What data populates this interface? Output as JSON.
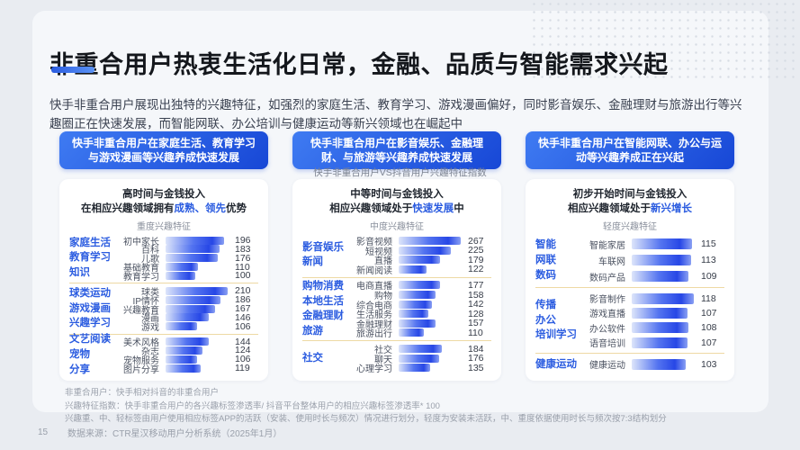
{
  "page_number": "15",
  "title": "非重合用户热衷生活化日常，金融、品质与智能需求兴起",
  "subtitle": "快手非重合用户展现出独特的兴趣特征，如强烈的家庭生活、教育学习、游戏漫画偏好，同时影音娱乐、金融理财与旅游出行等兴趣圈正在快速发展，而智能网联、办公培训与健康运动等新兴领域也在崛起中",
  "center_caption": "快手非重合用户VS抖音用户兴趣特征指数",
  "colors": {
    "accent_blue": "#2b5ce0",
    "pill_gradient_start": "#3f7bf2",
    "pill_gradient_end": "#1747d6",
    "bar_blue_deep": "#2747e6",
    "divider_tan": "#eed9a4",
    "title_text": "#14171c",
    "slide_background": "#f5f7fa"
  },
  "panels": [
    {
      "pill": "快手非重合用户在家庭生活、教育学习与游戏漫画等兴趣养成快速发展",
      "header_line1": "高时间与金钱投入",
      "header_line2_pre": "在相应兴趣领域拥有",
      "header_highlight": "成熟、领先",
      "header_line2_post": "优势",
      "sub_label": "重度兴趣特征"
    },
    {
      "pill": "快手非重合用户在影音娱乐、金融理财、与旅游等兴趣养成快速发展",
      "header_line1": "中等时间与金钱投入",
      "header_line2_pre": "相应兴趣领域处于",
      "header_highlight": "快速发展",
      "header_line2_post": "中",
      "sub_label": "中度兴趣特征"
    },
    {
      "pill": "快手非重合用户在智能网联、办公与运动等兴趣养成正在兴起",
      "header_line1": "初步开始时间与金钱投入",
      "header_line2_pre": "相应兴趣领域处于",
      "header_highlight": "新兴增长",
      "header_line2_post": "",
      "sub_label": "轻度兴趣特征"
    }
  ],
  "chart_data": [
    {
      "type": "bar",
      "orientation": "horizontal",
      "title": "重度兴趣特征",
      "xlabel": "兴趣特征指数",
      "xlim": [
        0,
        215
      ],
      "groups": [
        {
          "label": "家庭生活\n教育学习\n知识",
          "categories": [
            "初中家长",
            "百科",
            "儿歌",
            "基础教育",
            "教育学习"
          ],
          "values": [
            196,
            183,
            176,
            110,
            100
          ]
        },
        {
          "label": "球类运动\n游戏漫画\n兴趣学习",
          "categories": [
            "球类",
            "IP情怀",
            "兴趣教育",
            "漫画",
            "游戏"
          ],
          "values": [
            210,
            186,
            167,
            146,
            106
          ]
        },
        {
          "label": "文艺阅读\n宠物\n分享",
          "categories": [
            "美术风格",
            "杂志",
            "宠物服务",
            "图片分享"
          ],
          "values": [
            144,
            124,
            106,
            119
          ]
        }
      ]
    },
    {
      "type": "bar",
      "orientation": "horizontal",
      "title": "中度兴趣特征",
      "xlabel": "兴趣特征指数",
      "xlim": [
        0,
        275
      ],
      "groups": [
        {
          "label": "影音娱乐\n新闻",
          "categories": [
            "影音视频",
            "短视频",
            "直播",
            "新闻阅读"
          ],
          "values": [
            267,
            225,
            179,
            122
          ]
        },
        {
          "label": "购物消费\n本地生活\n金融理财\n旅游",
          "categories": [
            "电商直播",
            "购物",
            "综合电商",
            "生活服务",
            "金融理财",
            "旅游出行"
          ],
          "values": [
            177,
            158,
            142,
            128,
            157,
            110
          ]
        },
        {
          "label": "社交",
          "categories": [
            "社交",
            "聊天",
            "心理学习"
          ],
          "values": [
            184,
            176,
            135
          ]
        }
      ]
    },
    {
      "type": "bar",
      "orientation": "horizontal",
      "title": "轻度兴趣特征",
      "xlabel": "兴趣特征指数",
      "xlim": [
        0,
        122
      ],
      "groups": [
        {
          "label": "智能\n网联\n数码",
          "categories": [
            "智能家居",
            "车联网",
            "数码产品"
          ],
          "values": [
            115,
            113,
            109
          ]
        },
        {
          "label": "传播\n办公\n培训学习",
          "categories": [
            "影音制作",
            "游戏直播",
            "办公软件",
            "语音培训"
          ],
          "values": [
            118,
            107,
            108,
            107
          ]
        },
        {
          "label": "健康运动",
          "categories": [
            "健康运动"
          ],
          "values": [
            103
          ]
        }
      ]
    }
  ],
  "footnotes": [
    "非重合用户：快手相对抖音的非重合用户",
    "兴趣特征指数：快手非重合用户的各兴趣标签渗透率/ 抖音平台整体用户的相应兴趣标签渗透率* 100",
    "兴趣重、中、轻标签由用户使用相应标签APP的活跃（安装、使用时长与频次）情况进行划分，轻度为安装未活跃，中、重度依据使用时长与频次按7:3结构划分"
  ],
  "source": "数据来源：CTR星汉移动用户分析系统（2025年1月）"
}
